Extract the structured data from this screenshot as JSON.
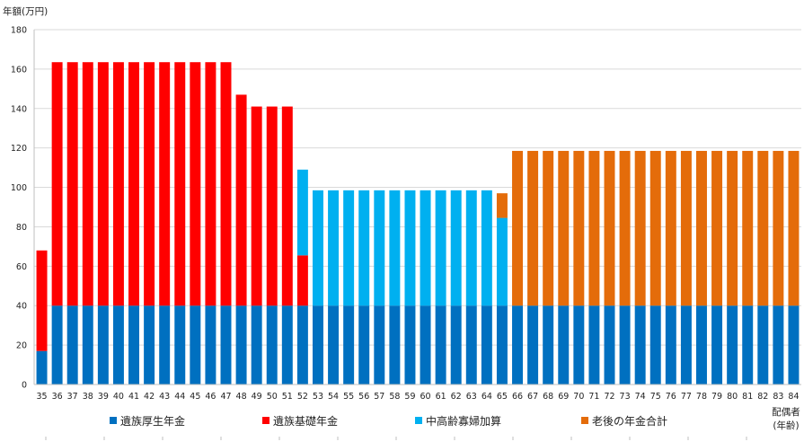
{
  "chart_data": {
    "type": "bar",
    "stacked": true,
    "ylabel": "年額(万円)",
    "xlabel_lines": [
      "配偶者",
      "(年齢)"
    ],
    "ylim": [
      0,
      180
    ],
    "yticks": [
      0,
      20,
      40,
      60,
      80,
      100,
      120,
      140,
      160,
      180
    ],
    "grid": true,
    "legend_position": "bottom",
    "categories": [
      "35",
      "36",
      "37",
      "38",
      "39",
      "40",
      "41",
      "42",
      "43",
      "44",
      "45",
      "46",
      "47",
      "48",
      "49",
      "50",
      "51",
      "52",
      "53",
      "54",
      "55",
      "56",
      "57",
      "58",
      "59",
      "60",
      "61",
      "62",
      "63",
      "64",
      "65",
      "66",
      "67",
      "68",
      "69",
      "70",
      "71",
      "72",
      "73",
      "74",
      "75",
      "76",
      "77",
      "78",
      "79",
      "80",
      "81",
      "82",
      "83",
      "84"
    ],
    "series": [
      {
        "name": "遺族厚生年金",
        "color": "#0070C0",
        "values": [
          17,
          40,
          40,
          40,
          40,
          40,
          40,
          40,
          40,
          40,
          40,
          40,
          40,
          40,
          40,
          40,
          40,
          40,
          40,
          40,
          40,
          40,
          40,
          40,
          40,
          40,
          40,
          40,
          40,
          40,
          40,
          40,
          40,
          40,
          40,
          40,
          40,
          40,
          40,
          40,
          40,
          40,
          40,
          40,
          40,
          40,
          40,
          40,
          40,
          40
        ]
      },
      {
        "name": "遺族基礎年金",
        "color": "#FF0000",
        "values": [
          51,
          123.5,
          123.5,
          123.5,
          123.5,
          123.5,
          123.5,
          123.5,
          123.5,
          123.5,
          123.5,
          123.5,
          123.5,
          107,
          101,
          101,
          101,
          25.5,
          0,
          0,
          0,
          0,
          0,
          0,
          0,
          0,
          0,
          0,
          0,
          0,
          0,
          0,
          0,
          0,
          0,
          0,
          0,
          0,
          0,
          0,
          0,
          0,
          0,
          0,
          0,
          0,
          0,
          0,
          0,
          0
        ]
      },
      {
        "name": "中高齢寡婦加算",
        "color": "#00B0F0",
        "values": [
          0,
          0,
          0,
          0,
          0,
          0,
          0,
          0,
          0,
          0,
          0,
          0,
          0,
          0,
          0,
          0,
          0,
          43.5,
          58.5,
          58.5,
          58.5,
          58.5,
          58.5,
          58.5,
          58.5,
          58.5,
          58.5,
          58.5,
          58.5,
          58.5,
          44.5,
          0,
          0,
          0,
          0,
          0,
          0,
          0,
          0,
          0,
          0,
          0,
          0,
          0,
          0,
          0,
          0,
          0,
          0,
          0
        ]
      },
      {
        "name": "老後の年金合計",
        "color": "#E46C0A",
        "values": [
          0,
          0,
          0,
          0,
          0,
          0,
          0,
          0,
          0,
          0,
          0,
          0,
          0,
          0,
          0,
          0,
          0,
          0,
          0,
          0,
          0,
          0,
          0,
          0,
          0,
          0,
          0,
          0,
          0,
          0,
          12.5,
          78.5,
          78.5,
          78.5,
          78.5,
          78.5,
          78.5,
          78.5,
          78.5,
          78.5,
          78.5,
          78.5,
          78.5,
          78.5,
          78.5,
          78.5,
          78.5,
          78.5,
          78.5,
          78.5
        ]
      }
    ]
  }
}
